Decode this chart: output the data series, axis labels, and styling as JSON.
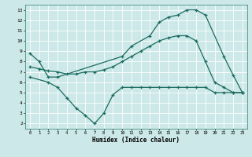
{
  "xlabel": "Humidex (Indice chaleur)",
  "background_color": "#cce8e8",
  "grid_color": "#b0d0d0",
  "line_color": "#1a6b60",
  "xlim": [
    -0.5,
    23.5
  ],
  "ylim": [
    1.5,
    13.5
  ],
  "xticks": [
    0,
    1,
    2,
    3,
    4,
    5,
    6,
    7,
    8,
    9,
    10,
    11,
    12,
    13,
    14,
    15,
    16,
    17,
    18,
    19,
    20,
    21,
    22,
    23
  ],
  "yticks": [
    2,
    3,
    4,
    5,
    6,
    7,
    8,
    9,
    10,
    11,
    12,
    13
  ],
  "series": [
    {
      "x": [
        0,
        1,
        2,
        3,
        10,
        11,
        13,
        14,
        15,
        16,
        17,
        18,
        19,
        21,
        22,
        23
      ],
      "y": [
        8.8,
        8.0,
        6.5,
        6.5,
        8.5,
        9.5,
        10.5,
        11.8,
        12.3,
        12.5,
        13.0,
        13.0,
        12.5,
        8.5,
        6.7,
        5.0
      ]
    },
    {
      "x": [
        0,
        1,
        2,
        3,
        4,
        5,
        6,
        7,
        8,
        9,
        10,
        11,
        12,
        13,
        14,
        15,
        16,
        17,
        18,
        19,
        20,
        21,
        22,
        23
      ],
      "y": [
        7.5,
        7.3,
        7.1,
        7.0,
        6.8,
        6.8,
        7.0,
        7.0,
        7.2,
        7.5,
        8.0,
        8.5,
        9.0,
        9.5,
        10.0,
        10.3,
        10.5,
        10.5,
        10.0,
        8.0,
        6.0,
        5.5,
        5.0,
        5.0
      ]
    },
    {
      "x": [
        0,
        2,
        3,
        4,
        5,
        6,
        7,
        8,
        9,
        10,
        11,
        12,
        13,
        14,
        15,
        16,
        17,
        18,
        19,
        20,
        21,
        22,
        23
      ],
      "y": [
        6.5,
        6.0,
        5.5,
        4.5,
        3.5,
        2.8,
        2.0,
        3.0,
        4.8,
        5.5,
        5.5,
        5.5,
        5.5,
        5.5,
        5.5,
        5.5,
        5.5,
        5.5,
        5.5,
        5.0,
        5.0,
        5.0,
        5.0
      ]
    }
  ]
}
